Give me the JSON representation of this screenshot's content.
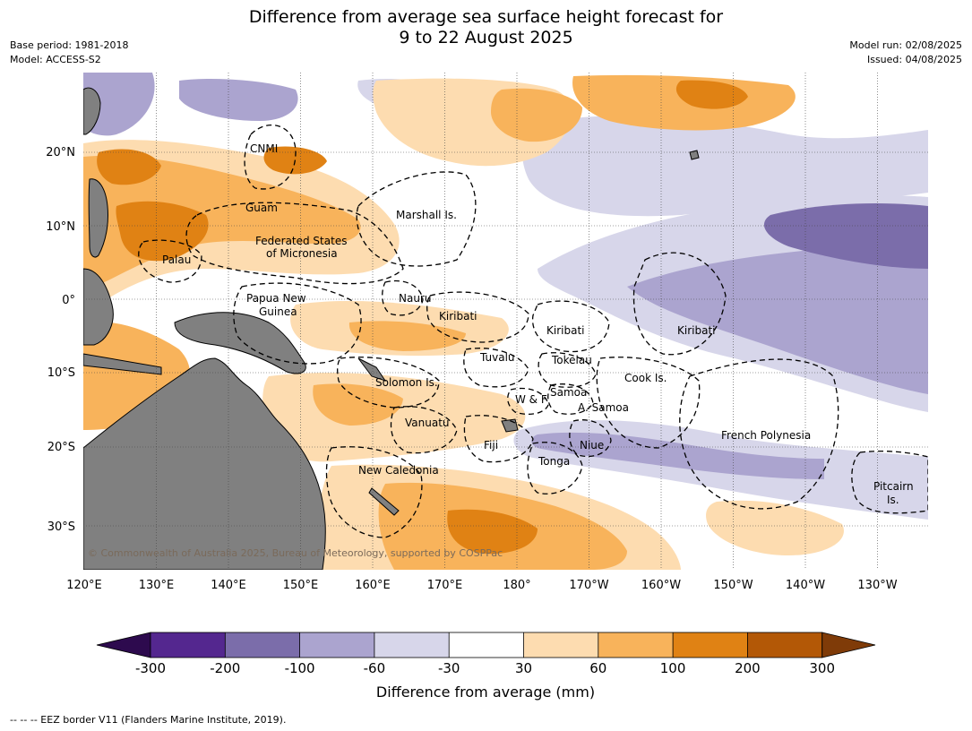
{
  "header": {
    "title_line1": "Difference from average sea surface height forecast for",
    "title_line2": "9 to 22 August 2025",
    "base_period": "Base period: 1981-2018",
    "model": "Model: ACCESS-S2",
    "model_run": "Model run: 02/08/2025",
    "issued": "Issued: 04/08/2025"
  },
  "map": {
    "lon_labels": [
      "120°E",
      "130°E",
      "140°E",
      "150°E",
      "160°E",
      "170°E",
      "180°",
      "170°W",
      "160°W",
      "150°W",
      "140°W",
      "130°W"
    ],
    "lat_labels": [
      "20°N",
      "10°N",
      "0°",
      "10°S",
      "20°S",
      "30°S"
    ],
    "regions": {
      "cnmi": "CNMI",
      "guam": "Guam",
      "marshall": "Marshall Is.",
      "fsm1": "Federated States",
      "fsm2": "of Micronesia",
      "palau": "Palau",
      "png1": "Papua New",
      "png2": "Guinea",
      "nauru": "Nauru",
      "kiribati_w": "Kiribati",
      "kiribati_c": "Kiribati",
      "kiribati_e": "Kiribati",
      "tuvalu": "Tuvalu",
      "tokelau": "Tokelau",
      "cook": "Cook Is.",
      "solomon": "Solomon Is.",
      "wf": "W & F",
      "samoa": "Samoa",
      "asamoa": "A. Samoa",
      "vanuatu": "Vanuatu",
      "fiji": "Fiji",
      "niue": "Niue",
      "tonga": "Tonga",
      "french_poly": "French Polynesia",
      "new_caledonia": "New Caledonia",
      "pitcairn1": "Pitcairn",
      "pitcairn2": "Is."
    },
    "copyright": "© Commonwealth of Australia 2025, Bureau of Meteorology, supported by COSPPac",
    "land_color": "#808080"
  },
  "colorbar": {
    "title": "Difference from average (mm)",
    "ticks": [
      "-300",
      "-200",
      "-100",
      "-60",
      "-30",
      "30",
      "60",
      "100",
      "200",
      "300"
    ],
    "colors": {
      "below": "#2d0a4e",
      "c1": "#54278f",
      "c2": "#7b6daa",
      "c3": "#aba4cf",
      "c4": "#d7d6ea",
      "c5": "#ffffff",
      "c6": "#fddcb0",
      "c7": "#f8b35b",
      "c8": "#e08214",
      "c9": "#b35806",
      "above": "#7f3b08"
    }
  },
  "footnote": "--  --  -- EEZ border V11 (Flanders Marine Institute, 2019)."
}
